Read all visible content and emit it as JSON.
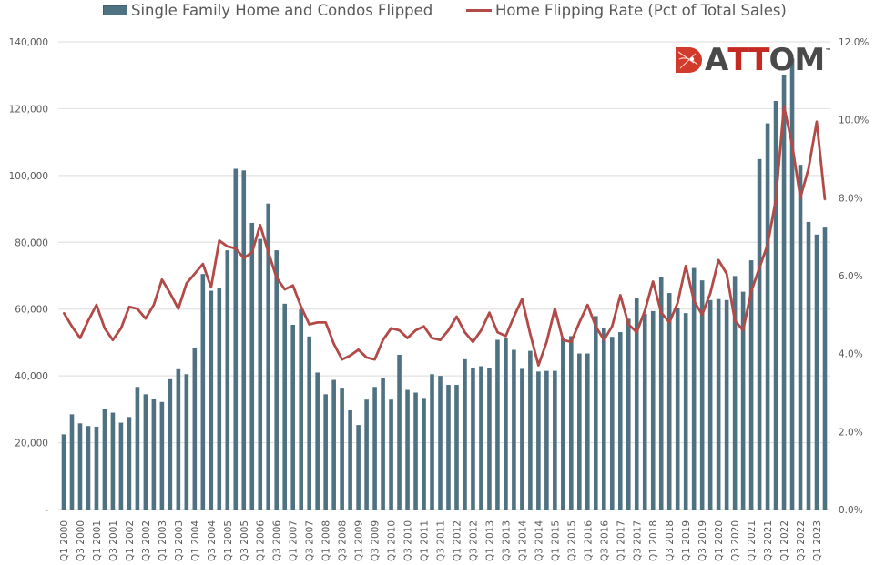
{
  "legend": {
    "bar_label": "Single Family Home and Condos Flipped",
    "line_label": "Home Flipping Rate (Pct of Total Sales)"
  },
  "logo": {
    "text_a": "A",
    "text_tt": "TT",
    "text_om": "OM",
    "tm": "™"
  },
  "colors": {
    "bar": "#4f7282",
    "line": "#b24a48",
    "grid": "#e3e3e3",
    "tick_text": "#595959",
    "logo_red": "#d23a2c",
    "logo_dark": "#4a4a4a",
    "logo_tt": "#c42a22"
  },
  "chart_data": {
    "type": "bar",
    "title": "",
    "xlabel": "",
    "ylabel": "",
    "ylim": [
      0,
      140000
    ],
    "y2lim": [
      0,
      12
    ],
    "grid": true,
    "legend_position": "top",
    "y_ticks": [
      "-",
      "20,000",
      "40,000",
      "60,000",
      "80,000",
      "100,000",
      "120,000",
      "140,000"
    ],
    "y2_ticks": [
      "0.0%",
      "2.0%",
      "4.0%",
      "6.0%",
      "8.0%",
      "10.0%",
      "12.0%"
    ],
    "x_tick_labels": [
      "Q1 2000",
      "Q3 2000",
      "Q1 2001",
      "Q3 2001",
      "Q1 2002",
      "Q3 2002",
      "Q1 2003",
      "Q3 2003",
      "Q1 2004",
      "Q3 2004",
      "Q1 2005",
      "Q3 2005",
      "Q1 2006",
      "Q3 2006",
      "Q1 2007",
      "Q3 2007",
      "Q1 2008",
      "Q3 2008",
      "Q1 2009",
      "Q3 2009",
      "Q1 2010",
      "Q3 2010",
      "Q1 2011",
      "Q3 2011",
      "Q1 2012",
      "Q3 2012",
      "Q1 2013",
      "Q3 2013",
      "Q1 2014",
      "Q3 2014",
      "Q1 2015",
      "Q3 2015",
      "Q1 2016",
      "Q3 2016",
      "Q1 2017",
      "Q3 2017",
      "Q1 2018",
      "Q3 2018",
      "Q1 2019",
      "Q3 2019",
      "Q1 2020",
      "Q3 2020",
      "Q1 2021",
      "Q3 2021",
      "Q1 2022",
      "Q3 2022",
      "Q1 2023"
    ],
    "categories_count": 94,
    "series": [
      {
        "name": "Single Family Home and Condos Flipped",
        "type": "bar",
        "axis": "left",
        "values": [
          22500,
          28500,
          25800,
          25000,
          24800,
          30200,
          29000,
          26000,
          27700,
          36700,
          34500,
          33000,
          32200,
          39000,
          42000,
          40500,
          48500,
          70500,
          65500,
          66300,
          77600,
          102000,
          101500,
          85800,
          81000,
          91600,
          77600,
          61600,
          55300,
          59900,
          51800,
          41000,
          34500,
          38800,
          36200,
          29700,
          25300,
          32900,
          36700,
          39500,
          32900,
          46300,
          35800,
          35000,
          33400,
          40500,
          40000,
          37300,
          37300,
          45000,
          42500,
          42900,
          42300,
          50800,
          51200,
          47800,
          42100,
          47500,
          41300,
          41500,
          41500,
          51500,
          51900,
          46700,
          46700,
          57900,
          54300,
          51700,
          53100,
          57100,
          63300,
          58600,
          59400,
          69500,
          64800,
          60300,
          58800,
          72300,
          68600,
          62700,
          63000,
          62700,
          69900,
          65200,
          74600,
          104900,
          115600,
          122300,
          130200,
          135000,
          103200,
          86100,
          82300,
          84400
        ]
      },
      {
        "name": "Home Flipping Rate (Pct of Total Sales)",
        "type": "line",
        "axis": "right",
        "values": [
          5.05,
          4.7,
          4.4,
          4.85,
          5.25,
          4.65,
          4.35,
          4.65,
          5.2,
          5.15,
          4.9,
          5.25,
          5.9,
          5.55,
          5.15,
          5.8,
          6.05,
          6.3,
          5.7,
          6.9,
          6.75,
          6.7,
          6.45,
          6.6,
          7.3,
          6.6,
          5.95,
          5.65,
          5.75,
          5.2,
          4.75,
          4.8,
          4.8,
          4.25,
          3.85,
          3.95,
          4.1,
          3.9,
          3.85,
          4.35,
          4.65,
          4.6,
          4.4,
          4.6,
          4.7,
          4.4,
          4.35,
          4.6,
          4.95,
          4.55,
          4.3,
          4.6,
          5.05,
          4.55,
          4.45,
          4.95,
          5.4,
          4.5,
          3.7,
          4.3,
          5.15,
          4.35,
          4.3,
          4.8,
          5.25,
          4.7,
          4.35,
          4.7,
          5.5,
          4.75,
          4.55,
          5.1,
          5.85,
          5.05,
          4.8,
          5.3,
          6.25,
          5.35,
          5.0,
          5.55,
          6.4,
          6.05,
          4.85,
          4.6,
          5.6,
          6.2,
          6.8,
          7.95,
          10.35,
          9.35,
          8.0,
          8.75,
          9.95,
          7.95
        ]
      }
    ]
  }
}
